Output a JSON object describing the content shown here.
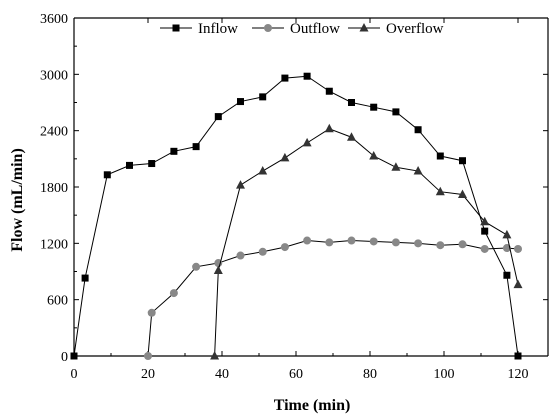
{
  "chart_data": {
    "type": "line",
    "title": "",
    "xlabel": "Time (min)",
    "ylabel": "Flow (mL/min)",
    "xlim": [
      0,
      125
    ],
    "ylim": [
      0,
      3600
    ],
    "xticks": [
      0,
      20,
      40,
      60,
      80,
      100,
      120
    ],
    "yticks": [
      0,
      600,
      1200,
      1800,
      2400,
      3000,
      3600
    ],
    "grid": false,
    "legend_position": "top",
    "series": [
      {
        "name": "Inflow",
        "marker": "square",
        "color": "#000000",
        "x": [
          0,
          3,
          9,
          15,
          21,
          27,
          33,
          39,
          45,
          51,
          57,
          63,
          69,
          75,
          81,
          87,
          93,
          99,
          105,
          111,
          117,
          120
        ],
        "y": [
          0,
          830,
          1930,
          2030,
          2050,
          2180,
          2230,
          2550,
          2710,
          2760,
          2960,
          2980,
          2820,
          2700,
          2650,
          2600,
          2410,
          2130,
          2080,
          1330,
          860,
          0
        ]
      },
      {
        "name": "Outflow",
        "marker": "circle",
        "color": "#888888",
        "x": [
          20,
          21,
          27,
          33,
          39,
          45,
          51,
          57,
          63,
          69,
          75,
          81,
          87,
          93,
          99,
          105,
          111,
          117,
          120
        ],
        "y": [
          0,
          460,
          670,
          950,
          990,
          1070,
          1110,
          1160,
          1230,
          1210,
          1230,
          1220,
          1210,
          1200,
          1180,
          1190,
          1140,
          1150,
          1140
        ]
      },
      {
        "name": "Overflow",
        "marker": "triangle",
        "color": "#333333",
        "x": [
          38,
          39,
          45,
          51,
          57,
          63,
          69,
          75,
          81,
          87,
          93,
          99,
          105,
          111,
          117,
          120
        ],
        "y": [
          0,
          910,
          1820,
          1970,
          2110,
          2270,
          2420,
          2330,
          2130,
          2010,
          1970,
          1750,
          1720,
          1430,
          1290,
          760
        ]
      }
    ]
  }
}
